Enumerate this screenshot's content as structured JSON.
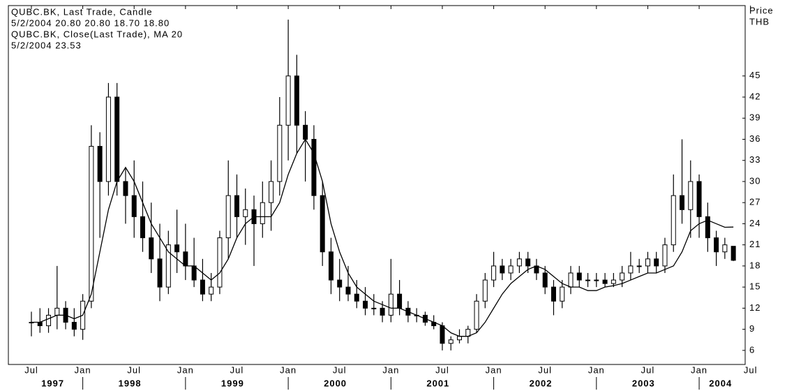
{
  "chart_data": {
    "type": "candlestick",
    "candle_label": "QUBC.BK, Last Trade, Candle",
    "candle_last": "5/2/2004 20.80 20.80 18.70 18.80",
    "color": "#000000",
    "y_axis_label": "Price",
    "y_axis_unit": "THB",
    "ylim": [
      4,
      55
    ],
    "yticks": [
      6,
      9,
      12,
      15,
      18,
      21,
      24,
      27,
      30,
      33,
      36,
      39,
      42,
      45
    ],
    "xticks": [
      {
        "value": "1997-07",
        "label": "Jul"
      },
      {
        "value": "1998-01",
        "label": "Jan"
      },
      {
        "value": "1998-07",
        "label": "Jul"
      },
      {
        "value": "1999-01",
        "label": "Jan"
      },
      {
        "value": "1999-07",
        "label": "Jul"
      },
      {
        "value": "2000-01",
        "label": "Jan"
      },
      {
        "value": "2000-07",
        "label": "Jul"
      },
      {
        "value": "2001-01",
        "label": "Jan"
      },
      {
        "value": "2001-07",
        "label": "Jul"
      },
      {
        "value": "2002-01",
        "label": "Jan"
      },
      {
        "value": "2002-07",
        "label": "Jul"
      },
      {
        "value": "2003-01",
        "label": "Jan"
      },
      {
        "value": "2003-07",
        "label": "Jul"
      },
      {
        "value": "2004-01",
        "label": "Jan"
      },
      {
        "value": "2004-07",
        "label": "Jul"
      }
    ],
    "years": [
      "1997",
      "1998",
      "1999",
      "2000",
      "2001",
      "2002",
      "2003",
      "2004"
    ],
    "x": [
      "1997-07",
      "1997-08",
      "1997-09",
      "1997-10",
      "1997-11",
      "1997-12",
      "1998-01",
      "1998-02",
      "1998-03",
      "1998-04",
      "1998-05",
      "1998-06",
      "1998-07",
      "1998-08",
      "1998-09",
      "1998-10",
      "1998-11",
      "1998-12",
      "1999-01",
      "1999-02",
      "1999-03",
      "1999-04",
      "1999-05",
      "1999-06",
      "1999-07",
      "1999-08",
      "1999-09",
      "1999-10",
      "1999-11",
      "1999-12",
      "2000-01",
      "2000-02",
      "2000-03",
      "2000-04",
      "2000-05",
      "2000-06",
      "2000-07",
      "2000-08",
      "2000-09",
      "2000-10",
      "2000-11",
      "2000-12",
      "2001-01",
      "2001-02",
      "2001-03",
      "2001-04",
      "2001-05",
      "2001-06",
      "2001-07",
      "2001-08",
      "2001-09",
      "2001-10",
      "2001-11",
      "2001-12",
      "2002-01",
      "2002-02",
      "2002-03",
      "2002-04",
      "2002-05",
      "2002-06",
      "2002-07",
      "2002-08",
      "2002-09",
      "2002-10",
      "2002-11",
      "2002-12",
      "2003-01",
      "2003-02",
      "2003-03",
      "2003-04",
      "2003-05",
      "2003-06",
      "2003-07",
      "2003-08",
      "2003-09",
      "2003-10",
      "2003-11",
      "2003-12",
      "2004-01",
      "2004-02",
      "2004-03",
      "2004-04",
      "2004-05"
    ],
    "open": [
      10,
      10,
      9.5,
      11,
      12,
      10,
      9,
      13,
      35,
      30,
      42,
      30,
      28,
      25,
      22,
      19,
      15,
      21,
      20,
      18,
      16,
      14,
      15,
      22,
      28,
      25,
      26,
      24,
      27,
      30,
      38,
      45,
      38,
      36,
      28,
      20,
      16,
      15,
      14,
      13,
      12,
      12,
      11,
      14,
      12,
      11,
      11,
      10,
      9.5,
      7,
      7.5,
      8,
      9,
      13,
      16,
      18,
      17,
      18,
      19,
      18,
      17,
      15,
      13,
      15,
      17,
      16,
      16,
      16,
      15.5,
      16,
      17,
      18,
      18,
      19,
      18,
      21,
      28,
      26,
      30,
      25,
      22,
      20,
      20.8
    ],
    "high": [
      11.5,
      12,
      12,
      18,
      13,
      12,
      14,
      38,
      37,
      44,
      44,
      32,
      33,
      30,
      27,
      24,
      23,
      26,
      24,
      22,
      19,
      17,
      23,
      33,
      31,
      29,
      28,
      30,
      33,
      42,
      53,
      48,
      40,
      38,
      30,
      22,
      19,
      18,
      16,
      15,
      14,
      13,
      19,
      16,
      13,
      12,
      11.5,
      11,
      10,
      8,
      9,
      9.5,
      14,
      17,
      20,
      19,
      19,
      20,
      20,
      19,
      18,
      16,
      16,
      18,
      18,
      17,
      17,
      17,
      17,
      18,
      20,
      19,
      20,
      20,
      22,
      31,
      36,
      33,
      31,
      27,
      23,
      22,
      20.8
    ],
    "low": [
      8,
      8.5,
      8.5,
      9,
      9,
      8,
      7.5,
      12,
      22,
      28,
      28,
      24,
      22,
      20,
      17,
      13,
      14,
      17,
      16,
      15,
      13,
      13,
      14,
      19,
      22,
      21,
      18,
      22,
      23,
      28,
      33,
      34,
      30,
      26,
      18,
      14,
      13,
      13,
      12,
      11,
      11,
      10,
      10,
      11,
      10,
      10,
      9.5,
      9,
      6,
      6,
      7,
      7,
      8.5,
      12,
      15,
      16,
      16,
      17,
      17,
      16,
      14,
      11,
      12,
      14,
      15,
      15,
      15,
      15,
      15,
      15,
      16,
      17,
      17,
      17,
      17,
      20,
      24,
      22,
      22,
      20,
      18,
      19,
      18.7
    ],
    "close": [
      10,
      9.5,
      11,
      12,
      10,
      9,
      13,
      35,
      30,
      42,
      30,
      28,
      25,
      22,
      19,
      15,
      21,
      20,
      18,
      16,
      14,
      15,
      22,
      28,
      25,
      26,
      24,
      27,
      30,
      38,
      45,
      38,
      36,
      28,
      20,
      16,
      15,
      14,
      13,
      12,
      12,
      11,
      14,
      12,
      11,
      11,
      10,
      9.5,
      7,
      7.5,
      8,
      9,
      13,
      16,
      18,
      17,
      18,
      19,
      18,
      17,
      15,
      13,
      15,
      17,
      16,
      16,
      16,
      15.5,
      16,
      17,
      18,
      18,
      19,
      18,
      21,
      28,
      26,
      30,
      25,
      22,
      20,
      21,
      18.8
    ],
    "line": {
      "type": "line",
      "name": "QUBC.BK, Close(Last Trade), MA 20",
      "last": "5/2/2004 23.53",
      "color": "#000000",
      "values": [
        10,
        10,
        10.5,
        11,
        11,
        10.5,
        11,
        14,
        20,
        26,
        30,
        32,
        30,
        27,
        24,
        22,
        20,
        19,
        18,
        18,
        17,
        16,
        17,
        19,
        22,
        24,
        25,
        25,
        25,
        27,
        31,
        34,
        36,
        34,
        30,
        24,
        20,
        17,
        15,
        14,
        13,
        12.5,
        12,
        12,
        11.5,
        11,
        10.5,
        10,
        9.5,
        8.5,
        8,
        8,
        8.5,
        10,
        12,
        14,
        15.5,
        16.5,
        17.5,
        18,
        17.5,
        16.5,
        15.5,
        15,
        15,
        14.5,
        14.5,
        15,
        15.2,
        15.5,
        16,
        16.5,
        17,
        17,
        17.5,
        18,
        20,
        23,
        24,
        24.5,
        24,
        23.5,
        23.53
      ]
    }
  }
}
